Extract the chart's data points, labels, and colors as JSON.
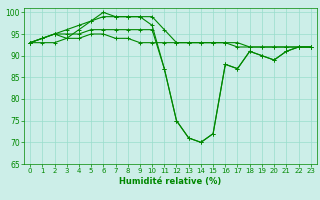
{
  "xlabel": "Humidité relative (%)",
  "background_color": "#cceee8",
  "grid_color": "#99ddcc",
  "line_color": "#008800",
  "xlim": [
    -0.5,
    23.5
  ],
  "ylim": [
    65,
    101
  ],
  "xticks": [
    0,
    1,
    2,
    3,
    4,
    5,
    6,
    7,
    8,
    9,
    10,
    11,
    12,
    13,
    14,
    15,
    16,
    17,
    18,
    19,
    20,
    21,
    22,
    23
  ],
  "yticks": [
    65,
    70,
    75,
    80,
    85,
    90,
    95,
    100
  ],
  "series": [
    [
      93,
      93,
      93,
      94,
      94,
      95,
      95,
      94,
      94,
      93,
      93,
      93,
      93,
      93,
      93,
      93,
      93,
      93,
      92,
      92,
      92,
      92,
      92,
      92
    ],
    [
      93,
      94,
      95,
      96,
      97,
      98,
      99,
      99,
      99,
      99,
      99,
      96,
      93,
      93,
      93,
      93,
      93,
      92,
      92,
      92,
      92,
      92,
      92,
      92
    ],
    [
      93,
      94,
      95,
      95,
      95,
      96,
      96,
      96,
      96,
      96,
      96,
      87,
      75,
      71,
      70,
      72,
      88,
      87,
      91,
      90,
      89,
      91,
      92,
      92
    ],
    [
      93,
      94,
      95,
      94,
      96,
      98,
      100,
      99,
      99,
      99,
      97,
      87,
      75,
      71,
      70,
      72,
      88,
      87,
      91,
      90,
      89,
      91,
      92,
      92
    ]
  ]
}
